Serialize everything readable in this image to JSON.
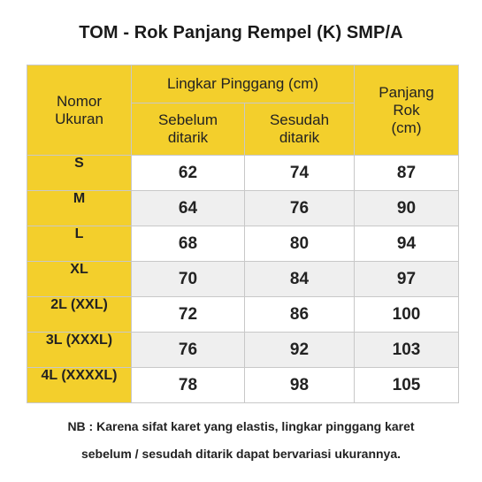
{
  "title": "TOM - Rok Panjang Rempel (K) SMP/A",
  "table": {
    "headers": {
      "size_line1": "Nomor",
      "size_line2": "Ukuran",
      "waist_group": "Lingkar Pinggang (cm)",
      "before_line1": "Sebelum",
      "before_line2": "ditarik",
      "after_line1": "Sesudah",
      "after_line2": "ditarik",
      "length_line1": "Panjang",
      "length_line2": "Rok",
      "length_line3": "(cm)"
    },
    "rows": [
      {
        "size": "S",
        "before": "62",
        "after": "74",
        "length": "87"
      },
      {
        "size": "M",
        "before": "64",
        "after": "76",
        "length": "90"
      },
      {
        "size": "L",
        "before": "68",
        "after": "80",
        "length": "94"
      },
      {
        "size": "XL",
        "before": "70",
        "after": "84",
        "length": "97"
      },
      {
        "size": "2L (XXL)",
        "before": "72",
        "after": "86",
        "length": "100"
      },
      {
        "size": "3L (XXXL)",
        "before": "76",
        "after": "92",
        "length": "103"
      },
      {
        "size": "4L (XXXXL)",
        "before": "78",
        "after": "98",
        "length": "105"
      }
    ]
  },
  "note": {
    "line1": "NB : Karena sifat karet yang elastis, lingkar pinggang karet",
    "line2": "sebelum / sesudah ditarik dapat bervariasi ukurannya."
  },
  "colors": {
    "header_yellow": "#f3cf2c",
    "row_grey": "#efefef",
    "row_white": "#ffffff"
  }
}
